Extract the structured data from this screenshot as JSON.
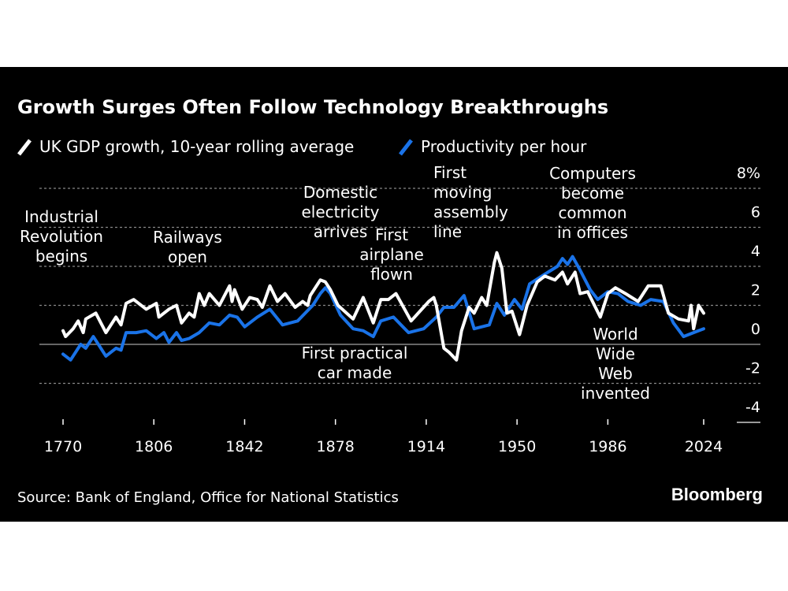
{
  "chart_data": {
    "type": "line",
    "title": "Growth Surges Often Follow Technology Breakthroughs",
    "source": "Source: Bank of England, Office for National Statistics",
    "brand": "Bloomberg",
    "xlim": [
      1770,
      2024
    ],
    "ylim": [
      -4,
      8
    ],
    "x_ticks": [
      1770,
      1806,
      1842,
      1878,
      1914,
      1950,
      1986,
      2024
    ],
    "y_ticks": [
      {
        "v": 8,
        "label": "8%"
      },
      {
        "v": 6,
        "label": "6"
      },
      {
        "v": 4,
        "label": "4"
      },
      {
        "v": 2,
        "label": "2"
      },
      {
        "v": 0,
        "label": "0"
      },
      {
        "v": -2,
        "label": "-2"
      },
      {
        "v": -4,
        "label": "-4"
      }
    ],
    "grid": true,
    "legend_position": "top-left",
    "series": [
      {
        "name": "UK GDP growth, 10-year rolling average",
        "color": "#ffffff",
        "x": [
          1770,
          1771,
          1774,
          1776,
          1778,
          1779,
          1783,
          1787,
          1791,
          1793,
          1795,
          1798,
          1803,
          1807,
          1808,
          1812,
          1815,
          1817,
          1820,
          1822,
          1824,
          1826,
          1828,
          1832,
          1836,
          1837,
          1838,
          1841,
          1844,
          1847,
          1849,
          1852,
          1855,
          1858,
          1862,
          1865,
          1867,
          1868,
          1872,
          1874,
          1876,
          1879,
          1885,
          1889,
          1893,
          1896,
          1899,
          1902,
          1908,
          1915,
          1917,
          1918,
          1921,
          1923,
          1926,
          1928,
          1931,
          1933,
          1936,
          1938,
          1941,
          1942,
          1944,
          1946,
          1948,
          1951,
          1954,
          1958,
          1961,
          1965,
          1968,
          1970,
          1973,
          1975,
          1978,
          1983,
          1986,
          1989,
          1993,
          1998,
          2002,
          2007,
          2010,
          2014,
          2018,
          2019,
          2020,
          2022,
          2024
        ],
        "y": [
          0.7,
          0.4,
          0.8,
          1.2,
          0.6,
          1.3,
          1.6,
          0.6,
          1.4,
          1.0,
          2.1,
          2.3,
          1.8,
          2.1,
          1.4,
          1.8,
          2.0,
          1.1,
          1.6,
          1.4,
          2.6,
          2.0,
          2.6,
          2.0,
          3.0,
          2.2,
          2.8,
          1.8,
          2.4,
          2.3,
          1.9,
          3.0,
          2.2,
          2.6,
          1.9,
          2.2,
          2.0,
          2.5,
          3.3,
          3.2,
          2.8,
          2.0,
          1.3,
          2.4,
          1.1,
          2.3,
          2.3,
          2.6,
          1.2,
          2.2,
          2.4,
          2.0,
          -0.2,
          -0.4,
          -0.8,
          0.7,
          1.9,
          1.6,
          2.4,
          2.0,
          4.2,
          4.7,
          3.9,
          1.6,
          1.7,
          0.5,
          2.0,
          3.2,
          3.5,
          3.3,
          3.7,
          3.1,
          3.7,
          2.6,
          2.7,
          1.4,
          2.6,
          2.9,
          2.6,
          2.2,
          3.0,
          3.0,
          1.6,
          1.3,
          1.2,
          2.0,
          0.8,
          2.0,
          1.6
        ]
      },
      {
        "name": "Productivity per hour",
        "color": "#1a73e8",
        "x": [
          1770,
          1773,
          1777,
          1779,
          1782,
          1787,
          1791,
          1793,
          1795,
          1799,
          1803,
          1807,
          1810,
          1812,
          1815,
          1817,
          1820,
          1824,
          1828,
          1832,
          1836,
          1839,
          1842,
          1847,
          1852,
          1857,
          1863,
          1866,
          1869,
          1872,
          1874,
          1876,
          1880,
          1885,
          1889,
          1893,
          1896,
          1901,
          1907,
          1913,
          1918,
          1921,
          1925,
          1929,
          1933,
          1939,
          1942,
          1945,
          1949,
          1952,
          1955,
          1961,
          1966,
          1968,
          1970,
          1972,
          1975,
          1979,
          1982,
          1986,
          1990,
          1994,
          1999,
          2003,
          2008,
          2012,
          2016,
          2020,
          2024
        ],
        "y": [
          -0.5,
          -0.8,
          0.0,
          -0.2,
          0.4,
          -0.6,
          -0.2,
          -0.3,
          0.6,
          0.6,
          0.7,
          0.3,
          0.6,
          0.1,
          0.6,
          0.2,
          0.3,
          0.6,
          1.1,
          1.0,
          1.5,
          1.4,
          0.9,
          1.4,
          1.8,
          1.0,
          1.2,
          1.6,
          2.0,
          2.6,
          2.9,
          2.6,
          1.5,
          0.8,
          0.7,
          0.4,
          1.2,
          1.4,
          0.6,
          0.8,
          1.4,
          1.9,
          1.9,
          2.5,
          0.8,
          1.0,
          2.1,
          1.5,
          2.3,
          1.8,
          3.1,
          3.6,
          4.0,
          4.4,
          4.1,
          4.5,
          3.8,
          2.8,
          2.3,
          2.7,
          2.6,
          2.2,
          2.0,
          2.3,
          2.2,
          1.1,
          0.4,
          0.6,
          0.8
        ]
      }
    ],
    "annotations": [
      {
        "id": "industrial",
        "lines": [
          "Industrial",
          "Revolution",
          "begins"
        ]
      },
      {
        "id": "railways",
        "lines": [
          "Railways",
          "open"
        ]
      },
      {
        "id": "electricity",
        "lines": [
          "Domestic",
          "electricity",
          "arrives"
        ]
      },
      {
        "id": "airplane",
        "lines": [
          "First",
          "airplane",
          "flown"
        ]
      },
      {
        "id": "assembly",
        "lines": [
          "First",
          "moving",
          "assembly",
          "line"
        ]
      },
      {
        "id": "computers",
        "lines": [
          "Computers",
          "become",
          "common",
          "in offices"
        ]
      },
      {
        "id": "car",
        "lines": [
          "First practical",
          "car made"
        ]
      },
      {
        "id": "www",
        "lines": [
          "World",
          "Wide",
          "Web",
          "invented"
        ]
      }
    ]
  }
}
